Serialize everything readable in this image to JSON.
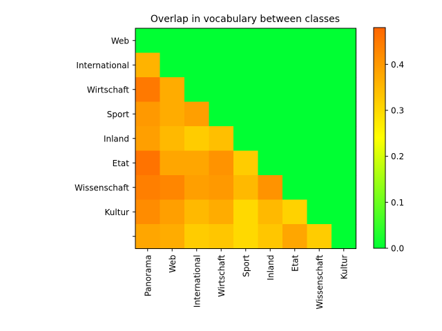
{
  "chart_data": {
    "type": "heatmap",
    "title": "Overlap in vocabulary between classes",
    "y_labels": [
      "Web",
      "International",
      "Wirtschaft",
      "Sport",
      "Inland",
      "Etat",
      "Wissenschaft",
      "Kultur",
      ""
    ],
    "x_labels": [
      "Panorama",
      "Web",
      "International",
      "Wirtschaft",
      "Sport",
      "Inland",
      "Etat",
      "Wissenschaft",
      "Kultur"
    ],
    "values": [
      [
        0,
        0,
        0,
        0,
        0,
        0,
        0,
        0,
        0
      ],
      [
        0.36,
        0,
        0,
        0,
        0,
        0,
        0,
        0,
        0
      ],
      [
        0.45,
        0.37,
        0,
        0,
        0,
        0,
        0,
        0,
        0
      ],
      [
        0.4,
        0.37,
        0.39,
        0,
        0,
        0,
        0,
        0,
        0
      ],
      [
        0.39,
        0.35,
        0.32,
        0.34,
        0,
        0,
        0,
        0,
        0
      ],
      [
        0.46,
        0.38,
        0.38,
        0.41,
        0.32,
        0,
        0,
        0,
        0
      ],
      [
        0.44,
        0.43,
        0.39,
        0.4,
        0.35,
        0.41,
        0,
        0,
        0
      ],
      [
        0.42,
        0.39,
        0.35,
        0.37,
        0.3,
        0.35,
        0.31,
        0,
        0
      ],
      [
        0.38,
        0.37,
        0.32,
        0.33,
        0.3,
        0.33,
        0.38,
        0.32,
        0
      ]
    ],
    "colorbar": {
      "min": 0.0,
      "max": 0.48,
      "ticks": [
        0.0,
        0.1,
        0.2,
        0.3,
        0.4
      ],
      "tick_labels": [
        "0.0",
        "0.1",
        "0.2",
        "0.3",
        "0.4"
      ],
      "colors": [
        "#00ff33",
        "#ffff00",
        "#ff6600"
      ]
    },
    "grid": false,
    "legend": "colorbar-right"
  }
}
